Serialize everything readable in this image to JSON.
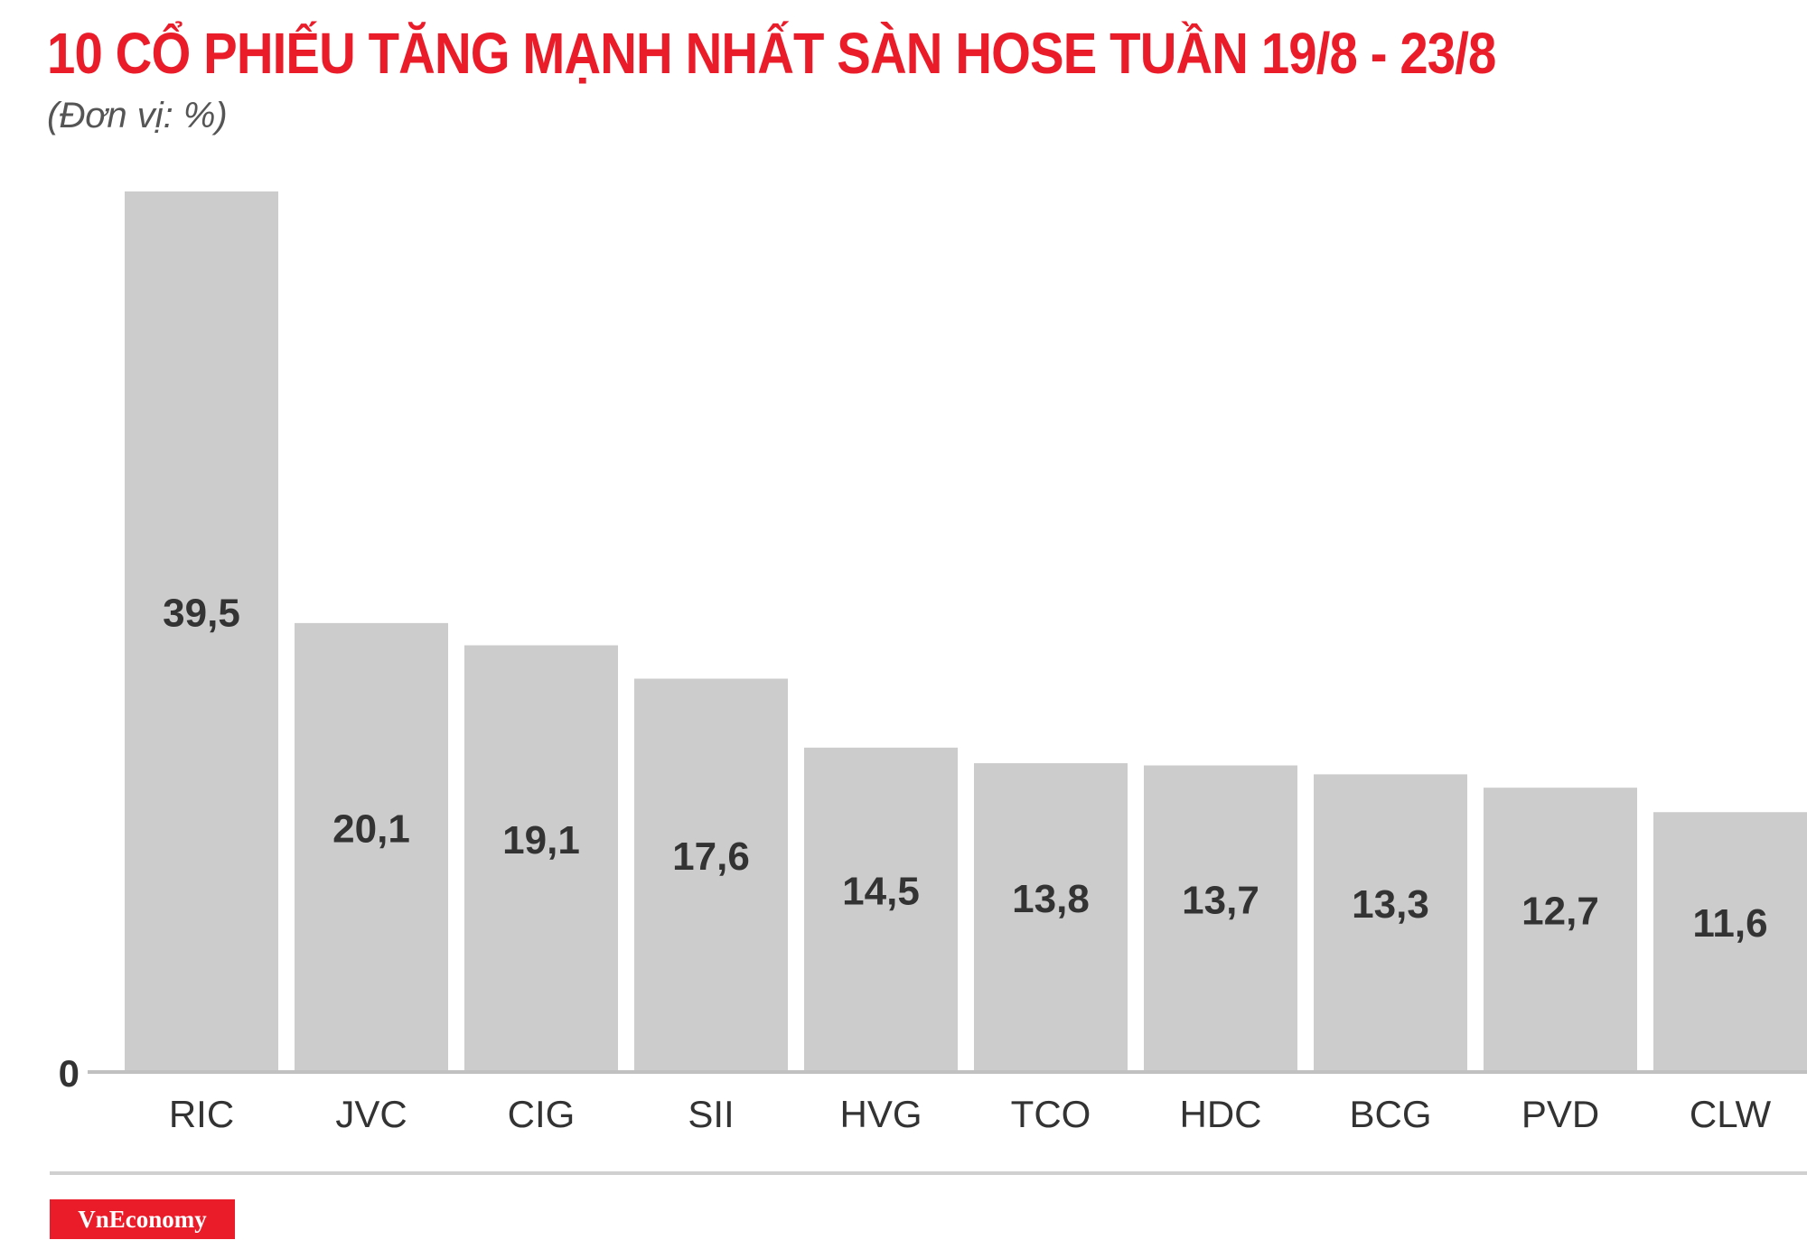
{
  "header": {
    "title": "10 CỔ PHIẾU TĂNG MẠNH NHẤT SÀN HOSE TUẦN 19/8 - 23/8",
    "subtitle": "(Đơn vị: %)"
  },
  "colors": {
    "accent": "#ea1c2a",
    "bar": "#cdcccd",
    "text": "#333333",
    "axis": "#c0c0c0"
  },
  "chart_data": {
    "type": "bar",
    "title": "10 CỔ PHIẾU TĂNG MẠNH NHẤT SÀN HOSE TUẦN 19/8 - 23/8",
    "subtitle": "(Đơn vị: %)",
    "xlabel": "",
    "ylabel": "",
    "categories": [
      "RIC",
      "JVC",
      "CIG",
      "SII",
      "HVG",
      "TCO",
      "HDC",
      "BCG",
      "PVD",
      "CLW"
    ],
    "values": [
      39.5,
      20.1,
      19.1,
      17.6,
      14.5,
      13.8,
      13.7,
      13.3,
      12.7,
      11.6
    ],
    "value_labels": [
      "39,5",
      "20,1",
      "19,1",
      "17,6",
      "14,5",
      "13,8",
      "13,7",
      "13,3",
      "12,7",
      "11,6"
    ],
    "y_tick_labels": [
      "0"
    ],
    "ylim": [
      0,
      39.5
    ],
    "grid": false,
    "legend": "none"
  },
  "footer": {
    "brand": "VnEconomy"
  }
}
